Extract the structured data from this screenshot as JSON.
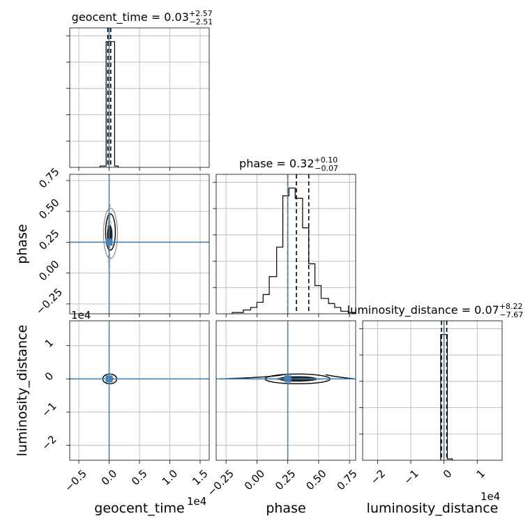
{
  "chart_data": {
    "type": "corner",
    "parameters": [
      "geocent_time",
      "phase",
      "luminosity_distance"
    ],
    "axis_labels": {
      "x": [
        "geocent_time",
        "phase",
        "luminosity_distance"
      ],
      "y": [
        "phase",
        "luminosity_distance"
      ]
    },
    "ranges": {
      "geocent_time": [
        -0.65,
        1.65
      ],
      "phase": [
        -0.33,
        0.8
      ],
      "luminosity_distance": [
        -2.45,
        1.75
      ]
    },
    "scale_exponents": {
      "geocent_time": "1e4",
      "luminosity_distance": "1e4"
    },
    "truths": {
      "geocent_time": 0.0,
      "phase": 0.25,
      "luminosity_distance": 0.0
    },
    "truth_color": "#4682b4",
    "grid": true,
    "titles": [
      {
        "param": "geocent_time",
        "label": "geocent_time = 0.03",
        "plus": "+2.57",
        "minus": "−2.51"
      },
      {
        "param": "phase",
        "label": "phase = 0.32",
        "plus": "+0.10",
        "minus": "−0.07"
      },
      {
        "param": "luminosity_distance",
        "label": "luminosity_distance = 0.07",
        "plus": "+8.22",
        "minus": "−7.67"
      }
    ],
    "ticks": {
      "geocent_time": {
        "values": [
          -0.5,
          0.0,
          0.5,
          1.0,
          1.5
        ],
        "labels": [
          "−0.5",
          "0.0",
          "0.5",
          "1.0",
          "1.5"
        ]
      },
      "phase": {
        "values": [
          -0.25,
          0.0,
          0.25,
          0.5,
          0.75
        ],
        "labels": [
          "−0.25",
          "0.00",
          "0.25",
          "0.50",
          "0.75"
        ]
      },
      "luminosity_distance": {
        "values": [
          -2,
          -1,
          0,
          1
        ],
        "labels": [
          "−2",
          "−1",
          "0",
          "1"
        ]
      }
    },
    "histograms": {
      "geocent_time": {
        "quantiles": [
          -0.0225,
          0.0003,
          0.026
        ],
        "bins": [
          {
            "lo": -0.15,
            "hi": -0.05,
            "h": 0.01
          },
          {
            "lo": -0.05,
            "hi": 0.0,
            "h": 0.98
          },
          {
            "lo": 0.0,
            "hi": 0.09,
            "h": 0.98
          },
          {
            "lo": 0.09,
            "hi": 0.15,
            "h": 0.01
          }
        ]
      },
      "phase": {
        "quantiles": [
          0.25,
          0.32,
          0.42
        ],
        "bins": [
          {
            "lo": -0.2,
            "hi": -0.11,
            "h": 0.01
          },
          {
            "lo": -0.11,
            "hi": -0.05,
            "h": 0.03
          },
          {
            "lo": -0.05,
            "hi": 0.0,
            "h": 0.05
          },
          {
            "lo": 0.0,
            "hi": 0.05,
            "h": 0.09
          },
          {
            "lo": 0.05,
            "hi": 0.1,
            "h": 0.15
          },
          {
            "lo": 0.1,
            "hi": 0.16,
            "h": 0.29
          },
          {
            "lo": 0.16,
            "hi": 0.21,
            "h": 0.52
          },
          {
            "lo": 0.21,
            "hi": 0.26,
            "h": 0.92
          },
          {
            "lo": 0.26,
            "hi": 0.31,
            "h": 0.98
          },
          {
            "lo": 0.31,
            "hi": 0.37,
            "h": 0.9
          },
          {
            "lo": 0.37,
            "hi": 0.42,
            "h": 0.67
          },
          {
            "lo": 0.42,
            "hi": 0.47,
            "h": 0.39
          },
          {
            "lo": 0.47,
            "hi": 0.52,
            "h": 0.22
          },
          {
            "lo": 0.52,
            "hi": 0.58,
            "h": 0.12
          },
          {
            "lo": 0.58,
            "hi": 0.63,
            "h": 0.08
          },
          {
            "lo": 0.63,
            "hi": 0.68,
            "h": 0.05
          },
          {
            "lo": 0.68,
            "hi": 0.74,
            "h": 0.02
          },
          {
            "lo": 0.74,
            "hi": 0.8,
            "h": 0.01
          }
        ]
      },
      "luminosity_distance": {
        "quantiles": [
          -0.0767,
          0.0007,
          0.0829
        ],
        "bins": [
          {
            "lo": -0.1,
            "hi": 0.0,
            "h": 0.98
          },
          {
            "lo": 0.0,
            "hi": 0.1,
            "h": 0.98
          },
          {
            "lo": 0.1,
            "hi": 0.25,
            "h": 0.01
          }
        ]
      }
    }
  }
}
